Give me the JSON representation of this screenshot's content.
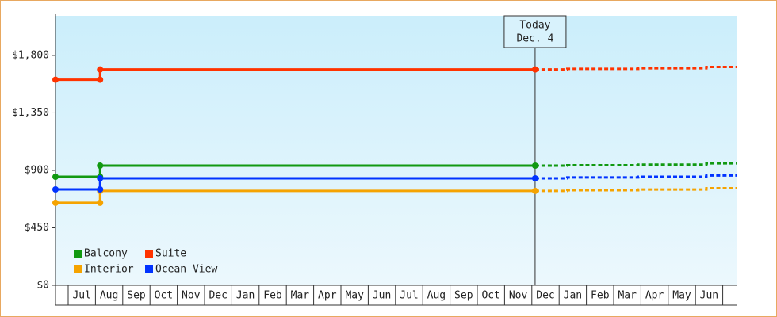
{
  "chart_data": {
    "type": "line",
    "xlim": [
      -0.465,
      24.535
    ],
    "ylim": [
      0,
      2110
    ],
    "yticks": [
      {
        "value": 0,
        "label": "$0"
      },
      {
        "value": 450,
        "label": "$450"
      },
      {
        "value": 900,
        "label": "$900"
      },
      {
        "value": 1350,
        "label": "$1,350"
      },
      {
        "value": 1800,
        "label": "$1,800"
      }
    ],
    "xticks": [
      0,
      1,
      2,
      3,
      4,
      5,
      6,
      7,
      8,
      9,
      10,
      11,
      12,
      13,
      14,
      15,
      16,
      17,
      18,
      19,
      20,
      21,
      22,
      23,
      24
    ],
    "month_labels": [
      "Jul",
      "Aug",
      "Sep",
      "Oct",
      "Nov",
      "Dec",
      "Jan",
      "Feb",
      "Mar",
      "Apr",
      "May",
      "Jun",
      "Jul",
      "Aug",
      "Sep",
      "Oct",
      "Nov",
      "Dec",
      "Jan",
      "Feb",
      "Mar",
      "Apr",
      "May",
      "Jun"
    ],
    "today": {
      "x": 17.12,
      "label": [
        "Today",
        "Dec. 4"
      ]
    },
    "series": [
      {
        "name": "Balcony",
        "color": "#119911",
        "x": [
          -0.465,
          1.17,
          1.17,
          17.12
        ],
        "values": [
          850,
          850,
          937,
          937
        ],
        "forecast_x": [
          17.12,
          18.3,
          18.3,
          20.9,
          20.9,
          23.4,
          23.4,
          24.535
        ],
        "forecast_values": [
          937,
          937,
          940,
          940,
          945,
          945,
          955,
          955
        ]
      },
      {
        "name": "Suite",
        "color": "#ff3300",
        "x": [
          -0.465,
          1.17,
          1.17,
          17.12
        ],
        "values": [
          1610,
          1610,
          1690,
          1690
        ],
        "forecast_x": [
          17.12,
          18.3,
          18.3,
          20.9,
          20.9,
          23.4,
          23.4,
          24.535
        ],
        "forecast_values": [
          1690,
          1690,
          1695,
          1695,
          1700,
          1700,
          1710,
          1710
        ]
      },
      {
        "name": "Interior",
        "color": "#f5a300",
        "x": [
          -0.465,
          1.17,
          1.17,
          17.12
        ],
        "values": [
          646,
          646,
          739,
          739
        ],
        "forecast_x": [
          17.12,
          18.3,
          18.3,
          20.9,
          20.9,
          23.4,
          23.4,
          24.535
        ],
        "forecast_values": [
          739,
          739,
          745,
          745,
          750,
          750,
          760,
          760
        ]
      },
      {
        "name": "Ocean View",
        "color": "#0033ff",
        "x": [
          -0.465,
          1.17,
          1.17,
          17.12
        ],
        "values": [
          751,
          751,
          838,
          838
        ],
        "forecast_x": [
          17.12,
          18.3,
          18.3,
          20.9,
          20.9,
          23.4,
          23.4,
          24.535
        ],
        "forecast_values": [
          838,
          838,
          845,
          845,
          850,
          850,
          860,
          860
        ]
      }
    ]
  }
}
